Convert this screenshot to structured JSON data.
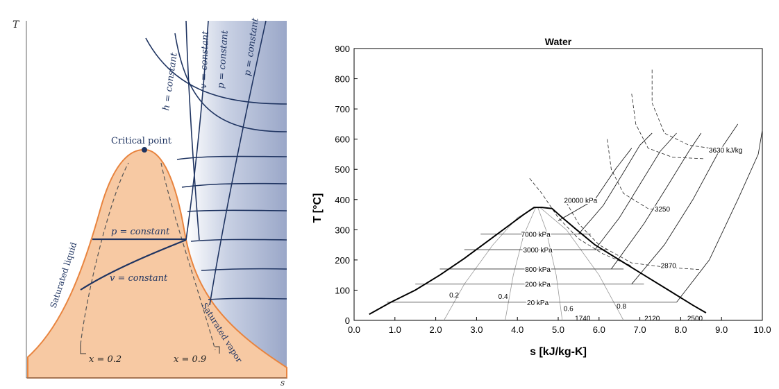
{
  "colors": {
    "dome_fill": "#f7c9a3",
    "dome_stroke": "#e8843f",
    "superheated": "#9aa7c8",
    "navy": "#1f3461",
    "dashed": "#555555"
  },
  "schematic": {
    "axis_y": "T",
    "axis_x": "s",
    "labels": {
      "h_const": "h = constant",
      "v_const_top": "v = constant",
      "p_const_top1": "p = constant",
      "p_const_top2": "p = constant",
      "critical": "Critical point",
      "p_const_mid": "p = constant",
      "v_const_mid": "v = constant",
      "sat_liquid": "Saturated liquid",
      "sat_vapor": "Saturated vapor",
      "x_low": "x = 0.2",
      "x_high": "x = 0.9"
    }
  },
  "chart_data": {
    "type": "line",
    "title": "Water",
    "xlabel": "s [kJ/kg-K]",
    "ylabel": "T [°C]",
    "xlim": [
      0.0,
      10.0
    ],
    "ylim": [
      0,
      900
    ],
    "xticks": [
      "0.0",
      "1.0",
      "2.0",
      "3.0",
      "4.0",
      "5.0",
      "6.0",
      "7.0",
      "8.0",
      "9.0",
      "10.0"
    ],
    "yticks": [
      "0",
      "100",
      "200",
      "300",
      "400",
      "500",
      "600",
      "700",
      "800",
      "900"
    ],
    "saturation_dome": {
      "x": [
        0.37,
        0.9,
        1.5,
        2.1,
        2.7,
        3.25,
        3.75,
        4.15,
        4.41,
        4.6,
        4.85,
        5.1,
        5.45,
        5.9,
        6.5,
        7.1,
        7.7,
        8.3,
        8.62
      ],
      "y": [
        20,
        60,
        100,
        150,
        205,
        260,
        310,
        350,
        374,
        374,
        370,
        340,
        300,
        250,
        200,
        150,
        100,
        50,
        25
      ]
    },
    "isobars": [
      {
        "label": "20 kPa",
        "y": 60,
        "x_left": 0.8,
        "x_right": 7.9,
        "label_x": 4.5
      },
      {
        "label": "200 kPa",
        "y": 120,
        "x_left": 1.5,
        "x_right": 7.1,
        "label_x": 4.5
      },
      {
        "label": "800 kPa",
        "y": 170,
        "x_left": 2.1,
        "x_right": 6.6,
        "label_x": 4.5
      },
      {
        "label": "3000 kPa",
        "y": 234,
        "x_left": 2.7,
        "x_right": 6.2,
        "label_x": 4.5
      },
      {
        "label": "7000 kPa",
        "y": 286,
        "x_left": 3.1,
        "x_right": 5.8,
        "label_x": 4.45
      },
      {
        "label": "20000 kPa",
        "y": 398,
        "x_left": 4.9,
        "x_right": 6.6,
        "label_x": 5.55
      }
    ],
    "quality_labels": [
      {
        "label": "0.2",
        "s": 2.45,
        "T": 85
      },
      {
        "label": "0.4",
        "s": 3.65,
        "T": 80
      },
      {
        "label": "0.6",
        "s": 5.25,
        "T": 40
      },
      {
        "label": "0.8",
        "s": 6.55,
        "T": 48
      }
    ],
    "entropy_labels": [
      {
        "label": "1740",
        "s": 5.6,
        "T": 8
      },
      {
        "label": "2120",
        "s": 7.3,
        "T": 8
      },
      {
        "label": "2500",
        "s": 8.35,
        "T": 8
      }
    ],
    "enthalpy_labels": [
      {
        "label": "2870",
        "s": 7.7,
        "T": 182
      },
      {
        "label": "3250",
        "s": 7.55,
        "T": 370
      },
      {
        "label": "3630 kJ/kg",
        "s": 9.1,
        "T": 565
      }
    ]
  }
}
